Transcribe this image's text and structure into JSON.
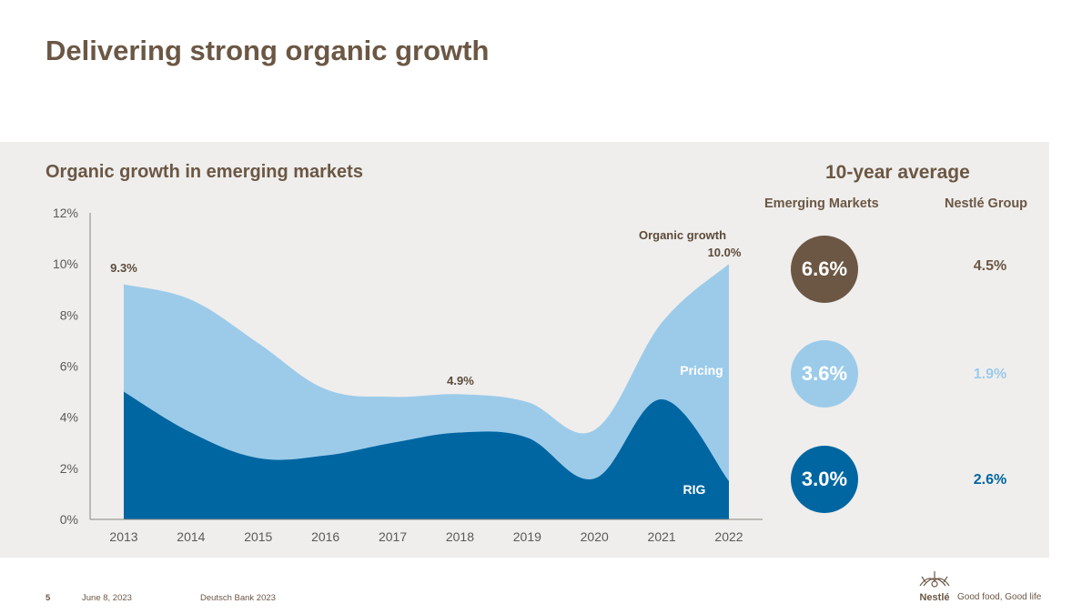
{
  "title": "Delivering strong organic growth",
  "chart_data": {
    "type": "area",
    "title": "Organic growth in emerging markets",
    "x": [
      "2013",
      "2014",
      "2015",
      "2016",
      "2017",
      "2018",
      "2019",
      "2020",
      "2021",
      "2022"
    ],
    "series": [
      {
        "name": "RIG",
        "values": [
          5.0,
          3.4,
          2.4,
          2.5,
          3.0,
          3.4,
          3.2,
          1.6,
          4.7,
          1.5
        ],
        "color": "#0066a1"
      },
      {
        "name": "Pricing",
        "values": [
          4.2,
          5.2,
          4.5,
          2.6,
          1.8,
          1.5,
          1.4,
          1.9,
          3.0,
          8.5
        ],
        "color": "#9ccbea"
      }
    ],
    "total_label": "Organic growth",
    "data_labels": [
      {
        "x": "2013",
        "text": "9.3%"
      },
      {
        "x": "2018",
        "text": "4.9%"
      },
      {
        "x": "2022",
        "text": "10.0%"
      }
    ],
    "ylim": [
      0,
      12
    ],
    "yticks": [
      "0%",
      "2%",
      "4%",
      "6%",
      "8%",
      "10%",
      "12%"
    ],
    "ytick_values": [
      0,
      2,
      4,
      6,
      8,
      10,
      12
    ],
    "grid": false
  },
  "averages": {
    "title": "10-year average",
    "col_em": "Emerging Markets",
    "col_group": "Nestlé Group",
    "rows": [
      {
        "label": "Organic growth",
        "em": "6.6%",
        "group": "4.5%",
        "color": "#6b5744"
      },
      {
        "label": "Pricing",
        "em": "3.6%",
        "group": "1.9%",
        "color": "#9ccbea"
      },
      {
        "label": "RIG",
        "em": "3.0%",
        "group": "2.6%",
        "color": "#0066a1"
      }
    ]
  },
  "footer": {
    "page": "5",
    "date": "June 8, 2023",
    "event": "Deutsch Bank 2023",
    "brand": "Nestlé",
    "tagline": "Good food, Good life"
  }
}
